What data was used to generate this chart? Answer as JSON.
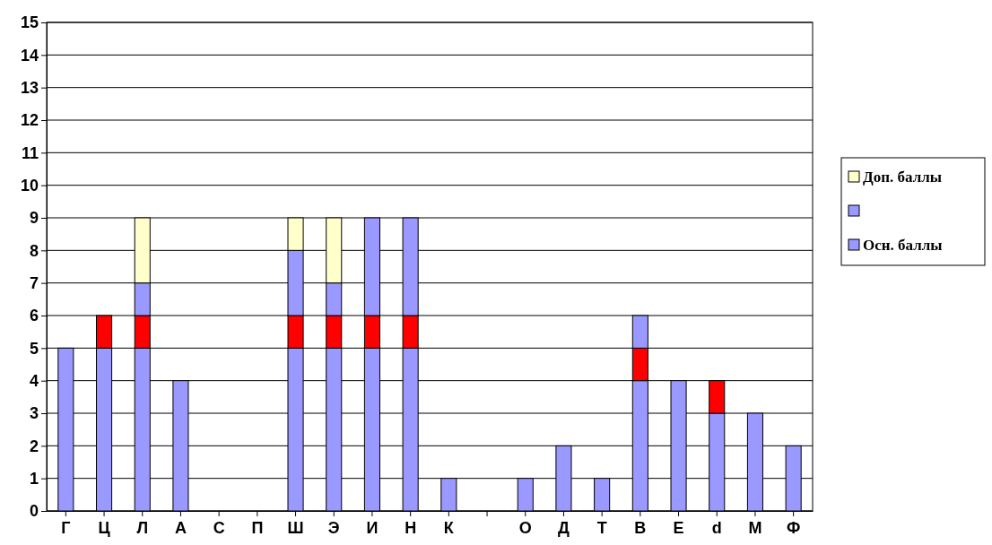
{
  "chart_data": {
    "type": "bar",
    "stacked": true,
    "categories": [
      "Г",
      "Ц",
      "Л",
      "А",
      "С",
      "П",
      "Ш",
      "Э",
      "И",
      "Н",
      "К",
      null,
      "О",
      "Д",
      "Т",
      "В",
      "Е",
      "d",
      "М",
      "Ф"
    ],
    "series": [
      {
        "name": "Осн. баллы",
        "color": "#9999ff",
        "values": [
          5,
          5,
          5,
          4,
          0,
          0,
          5,
          5,
          5,
          5,
          1,
          0,
          1,
          2,
          1,
          4,
          4,
          3,
          3,
          2
        ]
      },
      {
        "colors": [
          null,
          "#ff0000",
          "#ff0000",
          null,
          null,
          null,
          "#ff0000",
          "#ff0000",
          "#ff0000",
          "#ff0000",
          null,
          null,
          null,
          null,
          null,
          "#ff0000",
          null,
          "#ff0000",
          null,
          null
        ],
        "values": [
          null,
          1,
          1,
          null,
          null,
          null,
          1,
          1,
          1,
          1,
          null,
          null,
          null,
          null,
          null,
          1,
          null,
          1,
          null,
          null
        ]
      },
      {
        "color": "#9999ff",
        "values": [
          0,
          0,
          1,
          0,
          0,
          0,
          2,
          1,
          3,
          3,
          0,
          0,
          0,
          0,
          0,
          1,
          0,
          0,
          0,
          0
        ]
      },
      {
        "name": "Доп. баллы",
        "color": "#ffffcc",
        "values": [
          0,
          0,
          2,
          0,
          0,
          0,
          1,
          2,
          0,
          0,
          0,
          0,
          0,
          0,
          0,
          0,
          0,
          0,
          0,
          0
        ]
      }
    ],
    "ylim": [
      0,
      15
    ],
    "yticks": [
      0,
      1,
      2,
      3,
      4,
      5,
      6,
      7,
      8,
      9,
      10,
      11,
      12,
      13,
      14,
      15
    ],
    "grid": "y",
    "legend": "right"
  }
}
